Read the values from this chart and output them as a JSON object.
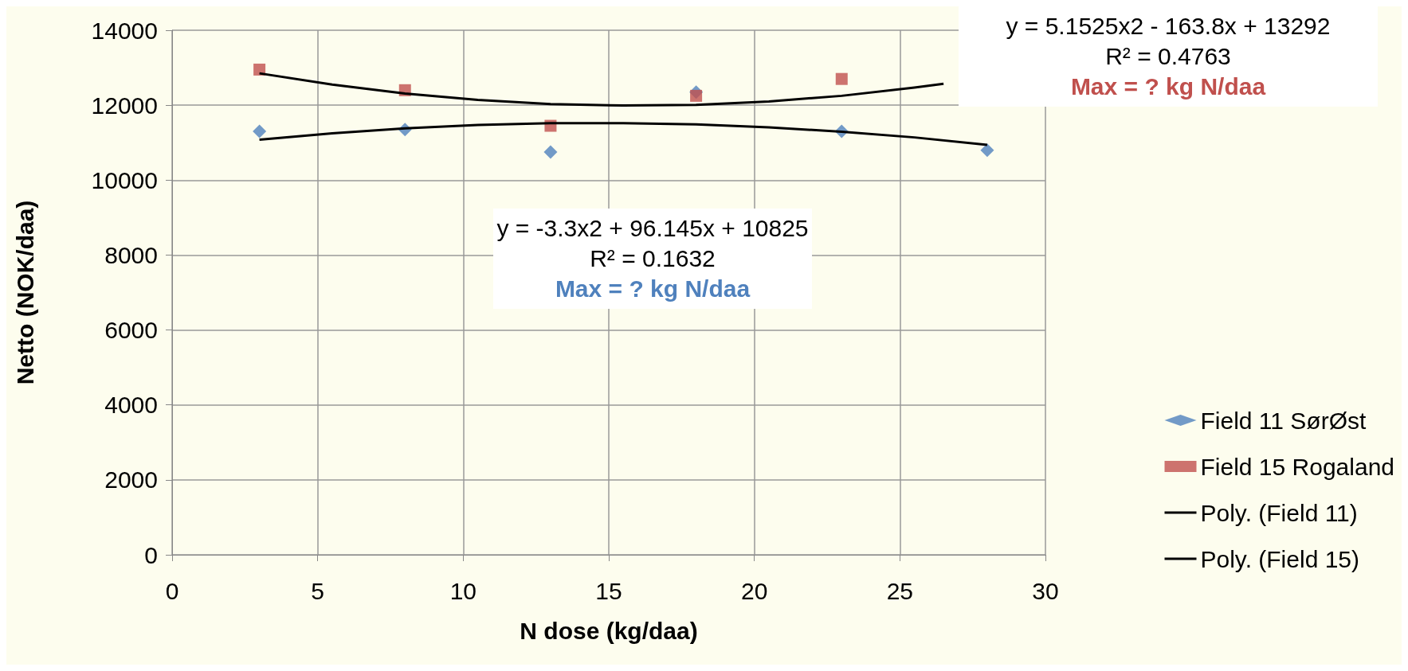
{
  "chart_data": {
    "type": "scatter",
    "xlabel": "N dose (kg/daa)",
    "ylabel": "Netto (NOK/daa)",
    "xlim": [
      0,
      30
    ],
    "xticks": [
      0,
      5,
      10,
      15,
      20,
      25,
      30
    ],
    "ylim": [
      0,
      14000
    ],
    "yticks": [
      0,
      2000,
      4000,
      6000,
      8000,
      10000,
      12000,
      14000
    ],
    "grid": true,
    "legend": "right",
    "series": [
      {
        "name": "Field 11 SørØst",
        "marker": "diamond",
        "color": "#4f81bd",
        "x": [
          3,
          8,
          13,
          18,
          23,
          28
        ],
        "values": [
          11300,
          11350,
          10750,
          12350,
          11300,
          10800
        ]
      },
      {
        "name": "Field 15 Rogaland",
        "marker": "square",
        "color": "#c0504d",
        "x": [
          3,
          8,
          13,
          18,
          23
        ],
        "values": [
          12950,
          12400,
          11450,
          12250,
          12700
        ]
      },
      {
        "name": "Poly. (Field 11)",
        "type": "line",
        "marker": "none",
        "color": "#000000",
        "x": [
          3,
          5.5,
          8,
          10.5,
          13,
          15.5,
          18,
          20.5,
          23,
          25.5,
          28
        ],
        "values": [
          11080,
          11250,
          11380,
          11470,
          11520,
          11520,
          11490,
          11410,
          11290,
          11140,
          10940
        ]
      },
      {
        "name": "Poly. (Field 15)",
        "type": "line",
        "marker": "none",
        "color": "#000000",
        "x": [
          3,
          5.5,
          8,
          10.5,
          13,
          15.5,
          18,
          20.5,
          23,
          25.5,
          26.5
        ],
        "values": [
          12850,
          12550,
          12310,
          12140,
          12030,
          11990,
          12010,
          12100,
          12250,
          12470,
          12570
        ]
      }
    ],
    "annotations": [
      "y = -3.3x2 + 96.145x + 10825",
      "R² = 0.1632",
      "Max = ? kg N/daa",
      "y = 5.1525x2 - 163.8x + 13292",
      "R² = 0.4763",
      "Max = ? kg N/daa"
    ]
  }
}
